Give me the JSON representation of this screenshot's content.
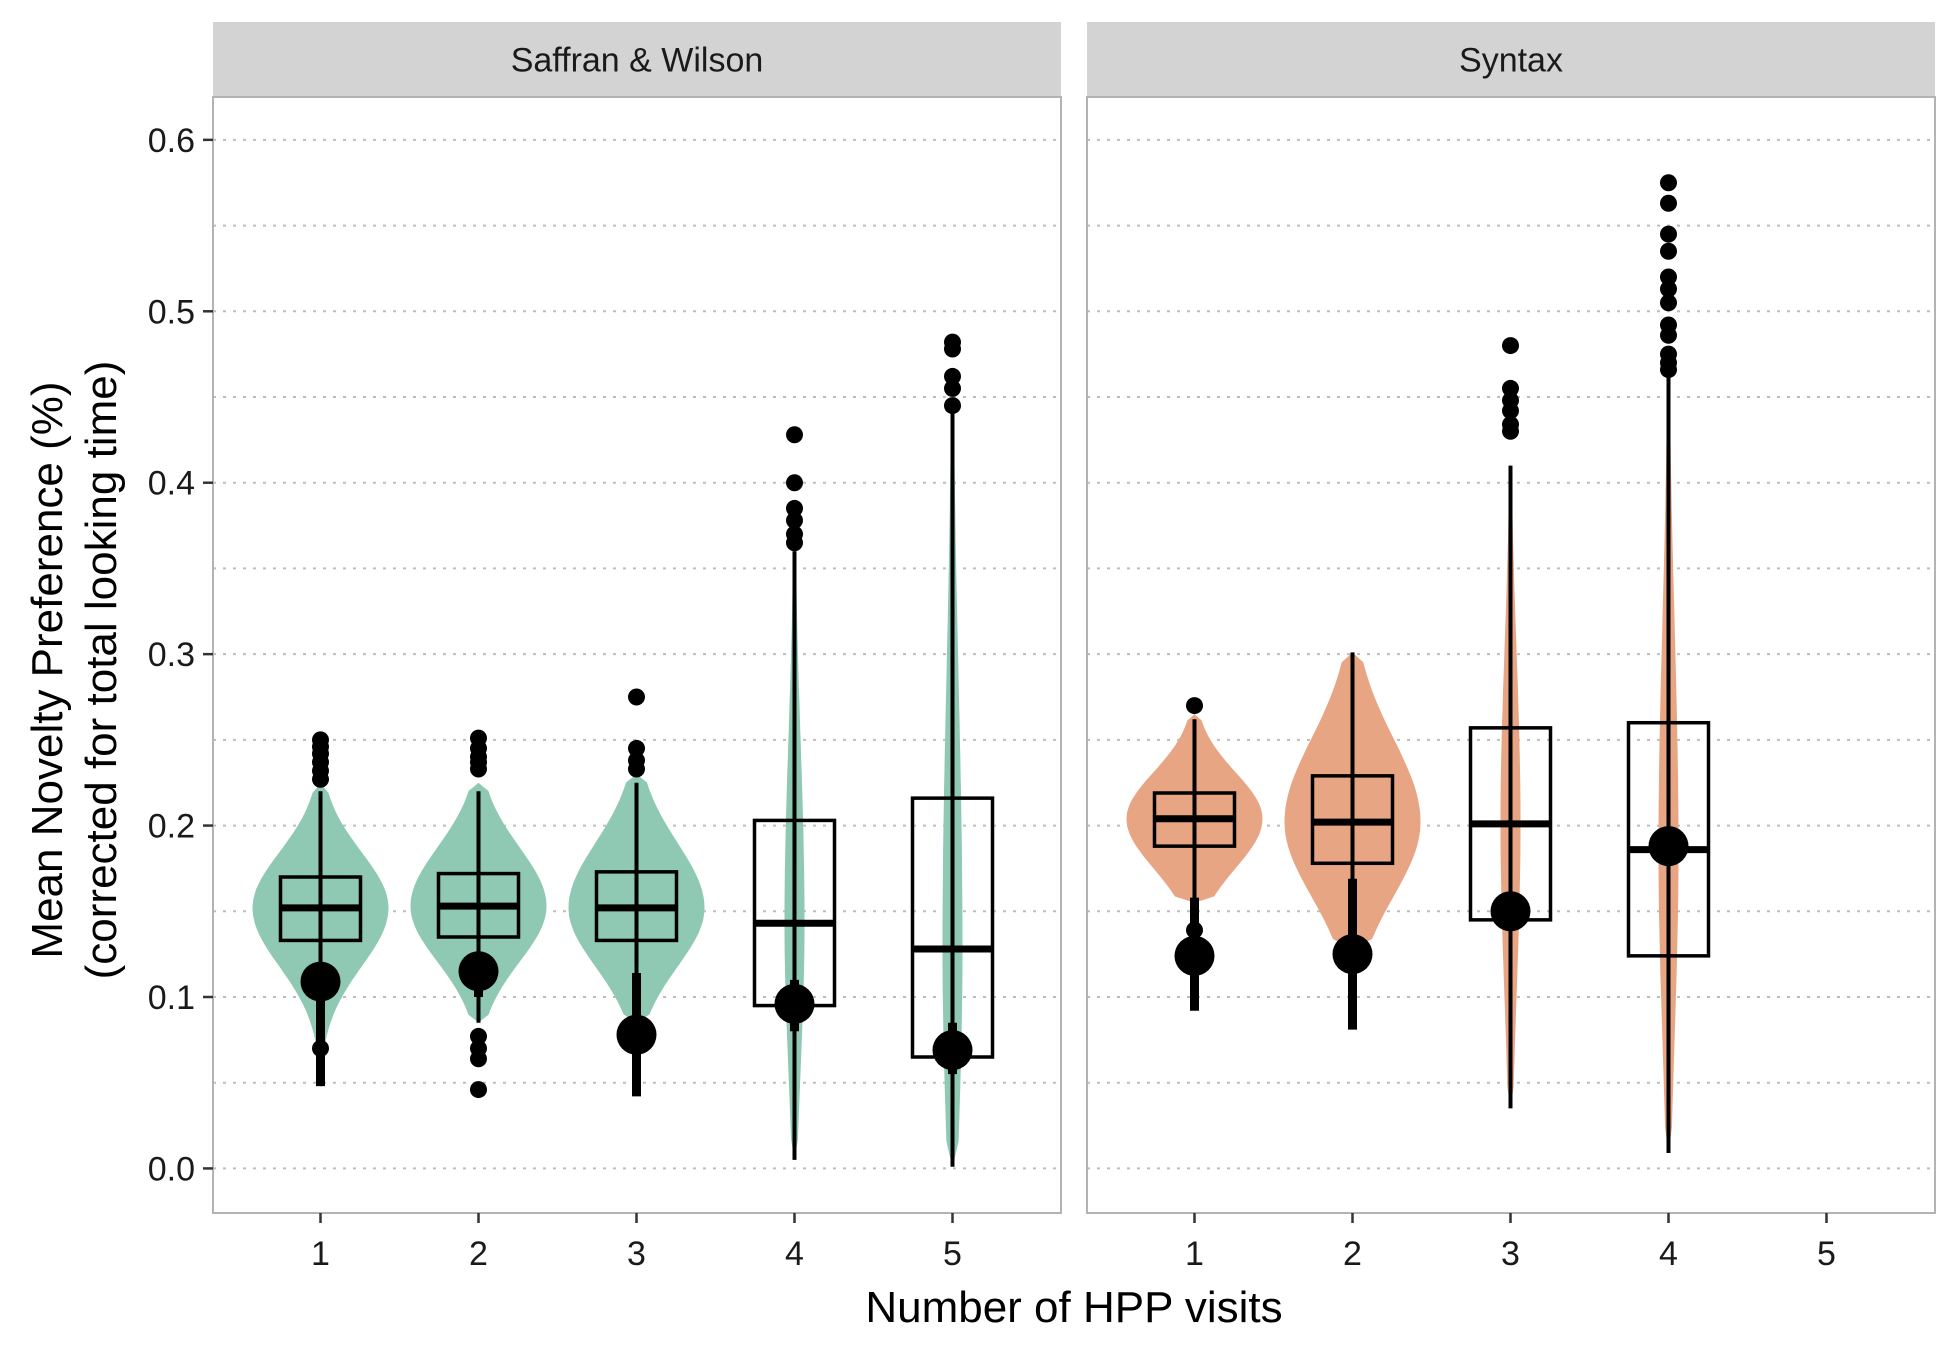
{
  "chart_data": {
    "type": "violin-box",
    "xlabel": "Number of HPP visits",
    "ylabel_line1": "Mean Novelty Preference (%)",
    "ylabel_line2": "(corrected for total looking time)",
    "ylim": [
      -0.026,
      0.625
    ],
    "yticks": [
      "0.0",
      "0.1",
      "0.2",
      "0.3",
      "0.4",
      "0.5",
      "0.6"
    ],
    "ytick_values": [
      0.0,
      0.1,
      0.2,
      0.3,
      0.4,
      0.5,
      0.6
    ],
    "xticks": [
      "1",
      "2",
      "3",
      "4",
      "5"
    ],
    "grid": "dotted horizontal",
    "panels": [
      {
        "name": "Saffran & Wilson",
        "color": "#8fc9b3",
        "groups": [
          {
            "x": 1,
            "min": 0.048,
            "q1": 0.133,
            "median": 0.152,
            "q3": 0.17,
            "max": 0.22,
            "violin_range": [
              0.048,
              0.225
            ],
            "mean": 0.109,
            "mean_ci": [
              0.048,
              0.118
            ],
            "outliers": [
              0.07,
              0.227,
              0.232,
              0.237,
              0.242,
              0.246,
              0.25
            ]
          },
          {
            "x": 2,
            "min": 0.085,
            "q1": 0.135,
            "median": 0.153,
            "q3": 0.172,
            "max": 0.22,
            "violin_range": [
              0.085,
              0.225
            ],
            "mean": 0.115,
            "mean_ci": [
              0.1,
              0.125
            ],
            "outliers": [
              0.046,
              0.064,
              0.07,
              0.077,
              0.233,
              0.237,
              0.24,
              0.245,
              0.251
            ]
          },
          {
            "x": 3,
            "min": 0.085,
            "q1": 0.133,
            "median": 0.152,
            "q3": 0.173,
            "max": 0.225,
            "violin_range": [
              0.085,
              0.23
            ],
            "mean": 0.078,
            "mean_ci": [
              0.042,
              0.114
            ],
            "outliers": [
              0.233,
              0.238,
              0.245,
              0.275
            ]
          },
          {
            "x": 4,
            "min": 0.005,
            "q1": 0.095,
            "median": 0.143,
            "q3": 0.203,
            "max": 0.36,
            "violin_range": [
              0.005,
              0.362
            ],
            "mean": 0.096,
            "mean_ci": [
              0.08,
              0.11
            ],
            "outliers": [
              0.365,
              0.37,
              0.378,
              0.385,
              0.4,
              0.428
            ]
          },
          {
            "x": 5,
            "min": 0.001,
            "q1": 0.065,
            "median": 0.128,
            "q3": 0.216,
            "max": 0.443,
            "violin_range": [
              0.001,
              0.445
            ],
            "mean": 0.069,
            "mean_ci": [
              0.055,
              0.085
            ],
            "outliers": [
              0.445,
              0.455,
              0.462,
              0.478,
              0.482
            ]
          }
        ]
      },
      {
        "name": "Syntax",
        "color": "#e8a584",
        "groups": [
          {
            "x": 1,
            "min": 0.155,
            "q1": 0.188,
            "median": 0.204,
            "q3": 0.219,
            "max": 0.262,
            "violin_range": [
              0.155,
              0.265
            ],
            "mean": 0.124,
            "mean_ci": [
              0.092,
              0.158
            ],
            "outliers": [
              0.139,
              0.27
            ]
          },
          {
            "x": 2,
            "min": 0.128,
            "q1": 0.178,
            "median": 0.202,
            "q3": 0.229,
            "max": 0.301,
            "violin_range": [
              0.128,
              0.301
            ],
            "mean": 0.125,
            "mean_ci": [
              0.081,
              0.169
            ],
            "outliers": []
          },
          {
            "x": 3,
            "min": 0.035,
            "q1": 0.145,
            "median": 0.201,
            "q3": 0.257,
            "max": 0.41,
            "violin_range": [
              0.035,
              0.412
            ],
            "mean": 0.15,
            "mean_ci": [
              0.14,
              0.16
            ],
            "outliers": [
              0.43,
              0.434,
              0.442,
              0.448,
              0.455,
              0.48
            ]
          },
          {
            "x": 4,
            "min": 0.009,
            "q1": 0.124,
            "median": 0.186,
            "q3": 0.26,
            "max": 0.462,
            "violin_range": [
              0.009,
              0.465
            ],
            "mean": 0.188,
            "mean_ci": [
              0.178,
              0.198
            ],
            "outliers": [
              0.466,
              0.47,
              0.475,
              0.486,
              0.492,
              0.505,
              0.513,
              0.52,
              0.535,
              0.545,
              0.563,
              0.575
            ]
          }
        ]
      }
    ]
  }
}
